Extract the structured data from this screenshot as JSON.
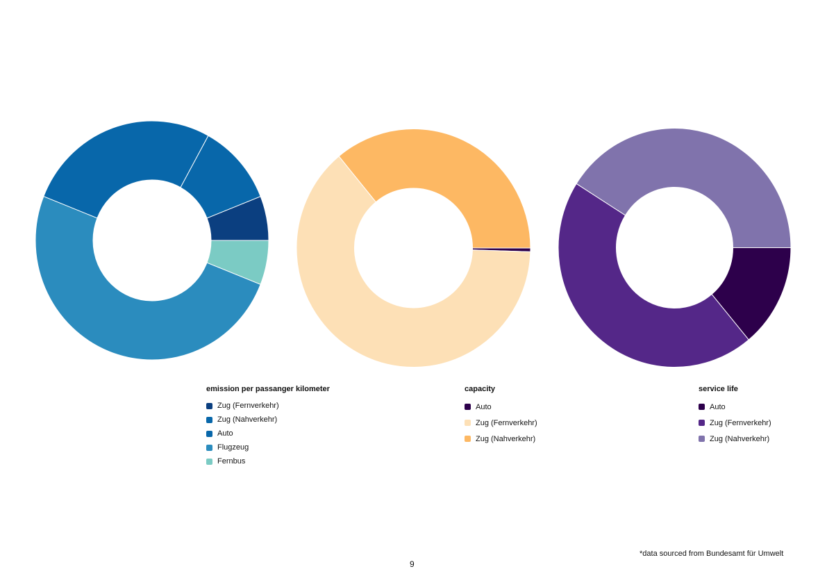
{
  "chart_data": [
    {
      "type": "pie",
      "variant": "donut",
      "title": "emission per passanger kilometer",
      "legend_position": "below-right",
      "categories": [
        "Zug (Fernverkehr)",
        "Zug (Nahverkehr)",
        "Auto",
        "Flugzeug",
        "Fernbus"
      ],
      "values": [
        6,
        11,
        27,
        50,
        6
      ],
      "colors": [
        "#0b3f80",
        "#0867aa",
        "#0867aa",
        "#2b8cbe",
        "#7bcbc4"
      ]
    },
    {
      "type": "pie",
      "variant": "donut",
      "title": "capacity",
      "legend_position": "below-right",
      "categories": [
        "Auto",
        "Zug (Fernverkehr)",
        "Zug (Nahverkehr)"
      ],
      "values": [
        0.5,
        63.5,
        36
      ],
      "colors": [
        "#2d004b",
        "#fde0b6",
        "#fdb863"
      ]
    },
    {
      "type": "pie",
      "variant": "donut",
      "title": "service life",
      "legend_position": "below-right",
      "categories": [
        "Auto",
        "Zug (Fernverkehr)",
        "Zug (Nahverkehr)"
      ],
      "values": [
        14,
        45,
        41
      ],
      "colors": [
        "#2d004b",
        "#542788",
        "#8073ac"
      ]
    }
  ],
  "footer": {
    "source_note": "*data sourced from Bundesamt für Umwelt",
    "page_number": "9"
  }
}
